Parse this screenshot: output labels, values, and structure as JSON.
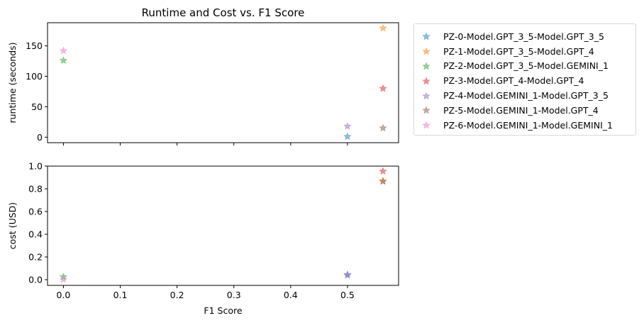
{
  "chart_data": [
    {
      "type": "scatter",
      "title": "Runtime and Cost vs. F1 Score",
      "xlabel": "",
      "ylabel": "runtime (seconds)",
      "xlim": [
        -0.028,
        0.59
      ],
      "ylim": [
        -9,
        188
      ],
      "xticks": [
        0.0,
        0.1,
        0.2,
        0.3,
        0.4,
        0.5
      ],
      "xticklabels": [],
      "yticks": [
        0,
        50,
        100,
        150
      ],
      "yticklabels": [
        "0",
        "50",
        "100",
        "150"
      ],
      "grid": false,
      "legend_position": "outside-right",
      "series": [
        {
          "name": "PZ-0-Model.GPT_3_5-Model.GPT_3_5",
          "color": "#1f77b4",
          "points": [
            {
              "x": 0.5,
              "y": 1
            }
          ]
        },
        {
          "name": "PZ-1-Model.GPT_3_5-Model.GPT_4",
          "color": "#ff7f0e",
          "points": [
            {
              "x": 0.5625,
              "y": 179
            }
          ]
        },
        {
          "name": "PZ-2-Model.GPT_3_5-Model.GEMINI_1",
          "color": "#2ca02c",
          "points": [
            {
              "x": 0.0,
              "y": 126
            }
          ]
        },
        {
          "name": "PZ-3-Model.GPT_4-Model.GPT_4",
          "color": "#d62728",
          "points": [
            {
              "x": 0.5625,
              "y": 80
            }
          ]
        },
        {
          "name": "PZ-4-Model.GEMINI_1-Model.GPT_3_5",
          "color": "#9467bd",
          "points": [
            {
              "x": 0.5,
              "y": 18
            }
          ]
        },
        {
          "name": "PZ-5-Model.GEMINI_1-Model.GPT_4",
          "color": "#8c564b",
          "points": [
            {
              "x": 0.5625,
              "y": 15
            }
          ]
        },
        {
          "name": "PZ-6-Model.GEMINI_1-Model.GEMINI_1",
          "color": "#e377c2",
          "points": [
            {
              "x": 0.0,
              "y": 142
            }
          ]
        }
      ]
    },
    {
      "type": "scatter",
      "title": "",
      "xlabel": "F1 Score",
      "ylabel": "cost (USD)",
      "xlim": [
        -0.028,
        0.59
      ],
      "ylim": [
        -0.05,
        1.0
      ],
      "xticks": [
        0.0,
        0.1,
        0.2,
        0.3,
        0.4,
        0.5
      ],
      "xticklabels": [
        "0.0",
        "0.1",
        "0.2",
        "0.3",
        "0.4",
        "0.5"
      ],
      "yticks": [
        0.0,
        0.2,
        0.4,
        0.6,
        0.8,
        1.0
      ],
      "yticklabels": [
        "0.0",
        "0.2",
        "0.4",
        "0.6",
        "0.8",
        "1.0"
      ],
      "grid": false,
      "series": [
        {
          "name": "PZ-0-Model.GPT_3_5-Model.GPT_3_5",
          "color": "#1f77b4",
          "points": [
            {
              "x": 0.5,
              "y": 0.04
            }
          ]
        },
        {
          "name": "PZ-1-Model.GPT_3_5-Model.GPT_4",
          "color": "#ff7f0e",
          "points": [
            {
              "x": 0.5625,
              "y": 0.87
            }
          ]
        },
        {
          "name": "PZ-2-Model.GPT_3_5-Model.GEMINI_1",
          "color": "#2ca02c",
          "points": [
            {
              "x": 0.0,
              "y": 0.025
            }
          ]
        },
        {
          "name": "PZ-3-Model.GPT_4-Model.GPT_4",
          "color": "#d62728",
          "points": [
            {
              "x": 0.5625,
              "y": 0.955
            }
          ]
        },
        {
          "name": "PZ-4-Model.GEMINI_1-Model.GPT_3_5",
          "color": "#9467bd",
          "points": [
            {
              "x": 0.5,
              "y": 0.045
            }
          ]
        },
        {
          "name": "PZ-5-Model.GEMINI_1-Model.GPT_4",
          "color": "#8c564b",
          "points": [
            {
              "x": 0.5625,
              "y": 0.865
            }
          ]
        },
        {
          "name": "PZ-6-Model.GEMINI_1-Model.GEMINI_1",
          "color": "#e377c2",
          "points": [
            {
              "x": 0.0,
              "y": 0.002
            }
          ]
        }
      ]
    }
  ]
}
